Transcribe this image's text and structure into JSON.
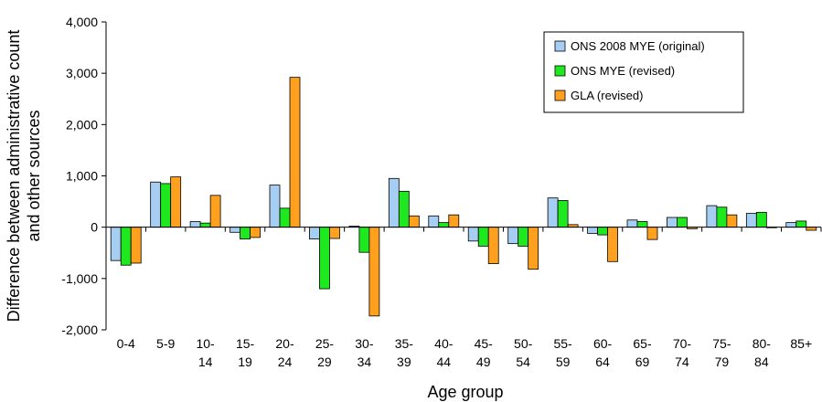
{
  "chart_data": {
    "type": "bar",
    "title": "",
    "xlabel": "Age group",
    "ylabel_lines": [
      "Difference between administrative count",
      "and other sources"
    ],
    "ylim": [
      -2000,
      4000
    ],
    "yticks": [
      -2000,
      -1000,
      0,
      1000,
      2000,
      3000,
      4000
    ],
    "ytick_labels": [
      "-2,000",
      "-1,000",
      "0",
      "1,000",
      "2,000",
      "3,000",
      "4,000"
    ],
    "categories": [
      [
        "0-4"
      ],
      [
        "5-9"
      ],
      [
        "10-",
        "14"
      ],
      [
        "15-",
        "19"
      ],
      [
        "20-",
        "24"
      ],
      [
        "25-",
        "29"
      ],
      [
        "30-",
        "34"
      ],
      [
        "35-",
        "39"
      ],
      [
        "40-",
        "44"
      ],
      [
        "45-",
        "49"
      ],
      [
        "50-",
        "54"
      ],
      [
        "55-",
        "59"
      ],
      [
        "60-",
        "64"
      ],
      [
        "65-",
        "69"
      ],
      [
        "70-",
        "74"
      ],
      [
        "75-",
        "79"
      ],
      [
        "80-",
        "84"
      ],
      [
        "85+"
      ]
    ],
    "series": [
      {
        "name": "ONS 2008 MYE (original)",
        "color": "#a6cdf2",
        "values": [
          -650,
          880,
          110,
          -100,
          820,
          -230,
          20,
          950,
          220,
          -270,
          -320,
          570,
          -120,
          140,
          190,
          420,
          270,
          90
        ]
      },
      {
        "name": "ONS MYE (revised)",
        "color": "#1ee81e",
        "values": [
          -740,
          850,
          80,
          -230,
          370,
          -1200,
          -490,
          700,
          90,
          -370,
          -370,
          520,
          -150,
          110,
          190,
          390,
          290,
          120
        ]
      },
      {
        "name": "GLA (revised)",
        "color": "#ffa01e",
        "values": [
          -700,
          980,
          620,
          -200,
          2920,
          -220,
          -1730,
          220,
          240,
          -710,
          -820,
          50,
          -670,
          -240,
          -30,
          240,
          0,
          -60
        ]
      }
    ],
    "legend_position": "top-right",
    "grid": false
  }
}
